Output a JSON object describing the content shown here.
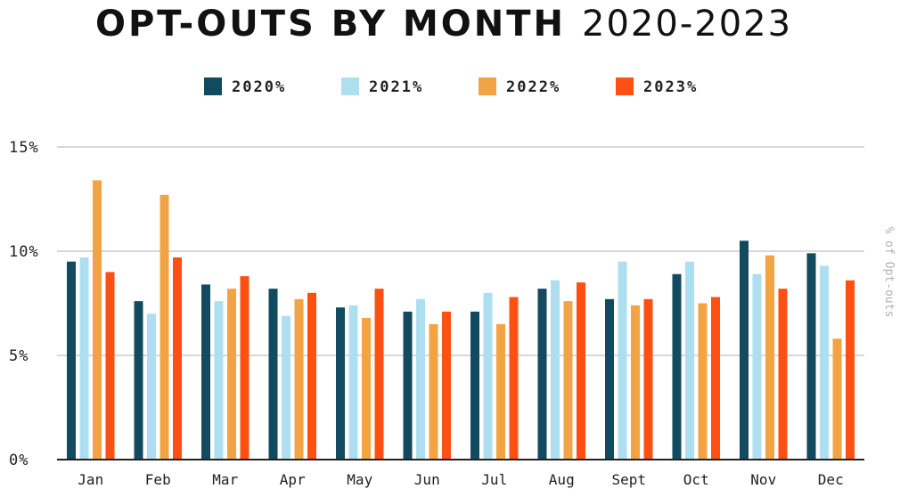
{
  "chart_data": {
    "type": "bar",
    "title_bold": "OPT-OUTS BY MONTH",
    "title_light": "2020-2023",
    "ylabel": "% of Opt-outs",
    "ylim": [
      0,
      15
    ],
    "yticks": [
      0,
      5,
      10,
      15
    ],
    "ytick_labels": [
      "0%",
      "5%",
      "10%",
      "15%"
    ],
    "grid": true,
    "legend_position": "top-center",
    "categories": [
      "Jan",
      "Feb",
      "Mar",
      "Apr",
      "May",
      "Jun",
      "Jul",
      "Aug",
      "Sept",
      "Oct",
      "Nov",
      "Dec"
    ],
    "series": [
      {
        "name": "2020%",
        "color": "#124A5F",
        "values": [
          9.5,
          7.6,
          8.4,
          8.2,
          7.3,
          7.1,
          7.1,
          8.2,
          7.7,
          8.9,
          10.5,
          9.9
        ]
      },
      {
        "name": "2021%",
        "color": "#ADDFF1",
        "values": [
          9.7,
          7.0,
          7.6,
          6.9,
          7.4,
          7.7,
          8.0,
          8.6,
          9.5,
          9.5,
          8.9,
          9.3
        ]
      },
      {
        "name": "2022%",
        "color": "#F2A444",
        "values": [
          13.4,
          12.7,
          8.2,
          7.7,
          6.8,
          6.5,
          6.5,
          7.6,
          7.4,
          7.5,
          9.8,
          5.8
        ]
      },
      {
        "name": "2023%",
        "color": "#FF5014",
        "values": [
          9.0,
          9.7,
          8.8,
          8.0,
          8.2,
          7.1,
          7.8,
          8.5,
          7.7,
          7.8,
          8.2,
          8.6
        ]
      }
    ]
  }
}
